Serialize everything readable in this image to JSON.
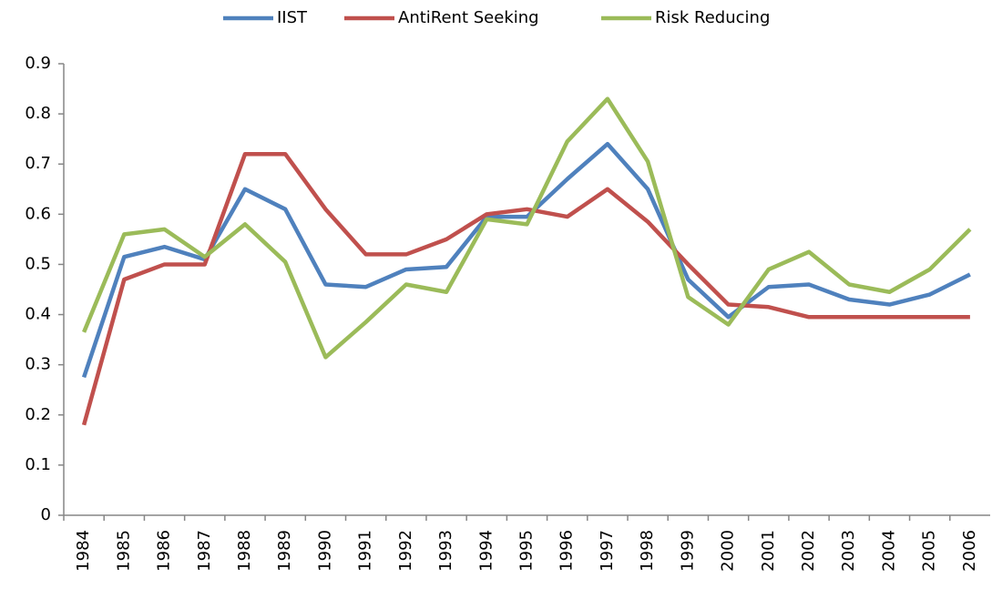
{
  "chart_data": {
    "type": "line",
    "categories": [
      "1984",
      "1985",
      "1986",
      "1987",
      "1988",
      "1989",
      "1990",
      "1991",
      "1992",
      "1993",
      "1994",
      "1995",
      "1996",
      "1997",
      "1998",
      "1999",
      "2000",
      "2001",
      "2002",
      "2003",
      "2004",
      "2005",
      "2006"
    ],
    "series": [
      {
        "name": "IIST",
        "color": "#4f81bd",
        "values": [
          0.275,
          0.515,
          0.535,
          0.51,
          0.65,
          0.61,
          0.46,
          0.455,
          0.49,
          0.495,
          0.595,
          0.595,
          0.67,
          0.74,
          0.65,
          0.47,
          0.395,
          0.455,
          0.46,
          0.43,
          0.42,
          0.44,
          0.48
        ]
      },
      {
        "name": "AntiRent Seeking",
        "color": "#c0504d",
        "values": [
          0.18,
          0.47,
          0.5,
          0.5,
          0.72,
          0.72,
          0.61,
          0.52,
          0.52,
          0.55,
          0.6,
          0.61,
          0.595,
          0.65,
          0.585,
          0.5,
          0.42,
          0.415,
          0.395,
          0.395,
          0.395,
          0.395,
          0.395
        ]
      },
      {
        "name": "Risk Reducing",
        "color": "#9bbb59",
        "values": [
          0.365,
          0.56,
          0.57,
          0.515,
          0.58,
          0.505,
          0.315,
          0.385,
          0.46,
          0.445,
          0.59,
          0.58,
          0.745,
          0.83,
          0.705,
          0.435,
          0.38,
          0.49,
          0.525,
          0.46,
          0.445,
          0.49,
          0.57
        ]
      }
    ],
    "ylim": [
      0,
      0.9
    ],
    "yticks": [
      0,
      0.1,
      0.2,
      0.3,
      0.4,
      0.5,
      0.6,
      0.7,
      0.8,
      0.9
    ],
    "grid": false,
    "legend": "top"
  }
}
